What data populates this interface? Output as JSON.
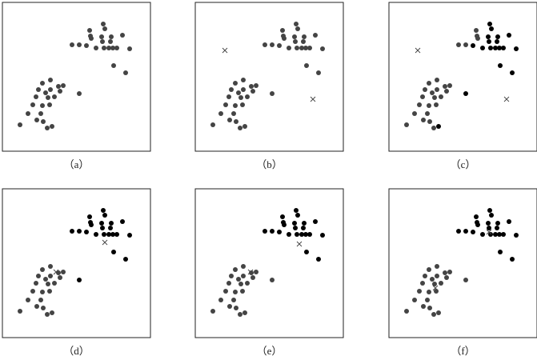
{
  "chart_data": [
    {
      "type": "scatter",
      "label": "（a）",
      "xlim": [
        0,
        185
      ],
      "ylim": [
        0,
        186
      ],
      "series": [
        {
          "color": "#444444",
          "marker": "dot",
          "x": [
            126,
            128,
            109,
            110,
            111,
            124,
            136,
            150,
            87,
            96,
            105,
            117,
            127,
            133,
            138,
            143,
            159,
            139,
            154,
            125,
            135,
            60,
            50,
            70,
            76,
            45,
            60,
            72,
            96,
            54,
            42,
            57,
            65,
            38,
            50,
            59,
            32,
            48,
            22,
            51,
            56,
            62,
            43
          ],
          "y": [
            159,
            153,
            151,
            144,
            141,
            143,
            143,
            145,
            133,
            133,
            132,
            129,
            129,
            129,
            129,
            129,
            128,
            107,
            98,
            137,
            137,
            89,
            85,
            81,
            82,
            77,
            77,
            75,
            72,
            73,
            68,
            67,
            68,
            58,
            57,
            58,
            47,
            47,
            33,
            37,
            29,
            31,
            39
          ]
        }
      ]
    },
    {
      "type": "scatter",
      "label": "（b）",
      "xlim": [
        0,
        185
      ],
      "ylim": [
        0,
        186
      ],
      "series": [
        {
          "color": "#444444",
          "marker": "dot",
          "x": [
            126,
            128,
            109,
            110,
            111,
            124,
            136,
            150,
            87,
            96,
            105,
            117,
            127,
            133,
            138,
            143,
            159,
            139,
            154,
            125,
            135,
            60,
            50,
            70,
            76,
            45,
            60,
            72,
            96,
            54,
            42,
            57,
            65,
            38,
            50,
            59,
            32,
            48,
            22,
            51,
            56,
            62,
            43
          ],
          "y": [
            159,
            153,
            151,
            144,
            141,
            143,
            143,
            145,
            133,
            133,
            132,
            129,
            129,
            129,
            129,
            129,
            128,
            107,
            98,
            137,
            137,
            89,
            85,
            81,
            82,
            77,
            77,
            75,
            72,
            73,
            68,
            67,
            68,
            58,
            57,
            58,
            47,
            47,
            33,
            37,
            29,
            31,
            39
          ]
        },
        {
          "color": "#444444",
          "marker": "x",
          "x": [
            37,
            147
          ],
          "y": [
            126,
            65
          ]
        }
      ]
    },
    {
      "type": "scatter",
      "label": "（c）",
      "xlim": [
        0,
        185
      ],
      "ylim": [
        0,
        186
      ],
      "series": [
        {
          "color": "#444444",
          "marker": "dot",
          "x": [
            109,
            110,
            111,
            87,
            96,
            60,
            50,
            70,
            76,
            45,
            60,
            72,
            54,
            42,
            57,
            65,
            38,
            50,
            59,
            32,
            48,
            22,
            51,
            56,
            43
          ],
          "y": [
            151,
            144,
            141,
            133,
            133,
            89,
            85,
            81,
            82,
            77,
            77,
            75,
            73,
            68,
            67,
            68,
            58,
            57,
            58,
            47,
            47,
            33,
            37,
            29,
            39
          ]
        },
        {
          "color": "#000000",
          "marker": "dot",
          "x": [
            126,
            128,
            124,
            136,
            150,
            105,
            117,
            127,
            133,
            138,
            143,
            159,
            139,
            154,
            125,
            135,
            96,
            62
          ],
          "y": [
            159,
            153,
            143,
            143,
            145,
            132,
            129,
            129,
            129,
            129,
            129,
            128,
            107,
            98,
            137,
            137,
            72,
            31
          ]
        },
        {
          "color": "#444444",
          "marker": "x",
          "x": [
            36,
            147
          ],
          "y": [
            126,
            65
          ]
        }
      ]
    },
    {
      "type": "scatter",
      "label": "（d）",
      "xlim": [
        0,
        185
      ],
      "ylim": [
        0,
        186
      ],
      "series": [
        {
          "color": "#444444",
          "marker": "dot",
          "x": [
            60,
            50,
            70,
            76,
            45,
            60,
            72,
            54,
            42,
            57,
            65,
            38,
            50,
            59,
            32,
            48,
            22,
            51,
            56,
            62,
            43
          ],
          "y": [
            89,
            85,
            81,
            82,
            77,
            77,
            75,
            73,
            68,
            67,
            68,
            58,
            57,
            58,
            47,
            47,
            33,
            37,
            29,
            31,
            39
          ]
        },
        {
          "color": "#000000",
          "marker": "dot",
          "x": [
            126,
            128,
            109,
            110,
            111,
            124,
            136,
            150,
            87,
            96,
            105,
            117,
            127,
            133,
            138,
            143,
            159,
            139,
            154,
            125,
            135,
            96
          ],
          "y": [
            159,
            153,
            151,
            144,
            141,
            143,
            143,
            145,
            133,
            133,
            132,
            129,
            129,
            129,
            129,
            129,
            128,
            107,
            98,
            137,
            137,
            72
          ]
        },
        {
          "color": "#444444",
          "marker": "x",
          "x": [
            67,
            128
          ],
          "y": [
            82,
            119
          ]
        }
      ]
    },
    {
      "type": "scatter",
      "label": "（e）",
      "xlim": [
        0,
        185
      ],
      "ylim": [
        0,
        186
      ],
      "series": [
        {
          "color": "#444444",
          "marker": "dot",
          "x": [
            60,
            50,
            70,
            76,
            45,
            60,
            72,
            96,
            54,
            42,
            57,
            65,
            38,
            50,
            59,
            32,
            48,
            22,
            51,
            56,
            62,
            43
          ],
          "y": [
            89,
            85,
            81,
            82,
            77,
            77,
            75,
            72,
            73,
            68,
            67,
            68,
            58,
            57,
            58,
            47,
            47,
            33,
            37,
            29,
            31,
            39
          ]
        },
        {
          "color": "#000000",
          "marker": "dot",
          "x": [
            126,
            128,
            109,
            110,
            111,
            124,
            136,
            150,
            87,
            96,
            105,
            117,
            127,
            133,
            138,
            143,
            159,
            139,
            154,
            125,
            135
          ],
          "y": [
            159,
            153,
            151,
            144,
            141,
            143,
            143,
            145,
            133,
            133,
            132,
            129,
            129,
            129,
            129,
            129,
            128,
            107,
            98,
            137,
            137
          ]
        },
        {
          "color": "#444444",
          "marker": "x",
          "x": [
            69,
            130
          ],
          "y": [
            82,
            117
          ]
        }
      ]
    },
    {
      "type": "scatter",
      "label": "（f）",
      "xlim": [
        0,
        185
      ],
      "ylim": [
        0,
        186
      ],
      "series": [
        {
          "color": "#444444",
          "marker": "dot",
          "x": [
            60,
            50,
            70,
            76,
            45,
            60,
            72,
            96,
            54,
            42,
            57,
            65,
            38,
            50,
            59,
            32,
            48,
            22,
            51,
            56,
            62,
            43
          ],
          "y": [
            89,
            85,
            81,
            82,
            77,
            77,
            75,
            72,
            73,
            68,
            67,
            68,
            58,
            57,
            58,
            47,
            47,
            33,
            37,
            29,
            31,
            39
          ]
        },
        {
          "color": "#000000",
          "marker": "dot",
          "x": [
            126,
            128,
            109,
            110,
            111,
            124,
            136,
            150,
            87,
            96,
            105,
            117,
            127,
            133,
            138,
            143,
            159,
            139,
            154,
            125,
            135
          ],
          "y": [
            159,
            153,
            151,
            144,
            141,
            143,
            143,
            145,
            133,
            133,
            132,
            129,
            129,
            129,
            129,
            129,
            128,
            107,
            98,
            137,
            137
          ]
        },
        {
          "color": "#444444",
          "marker": "x",
          "x": [
            58,
            125
          ],
          "y": [
            62,
            132
          ]
        }
      ]
    }
  ]
}
